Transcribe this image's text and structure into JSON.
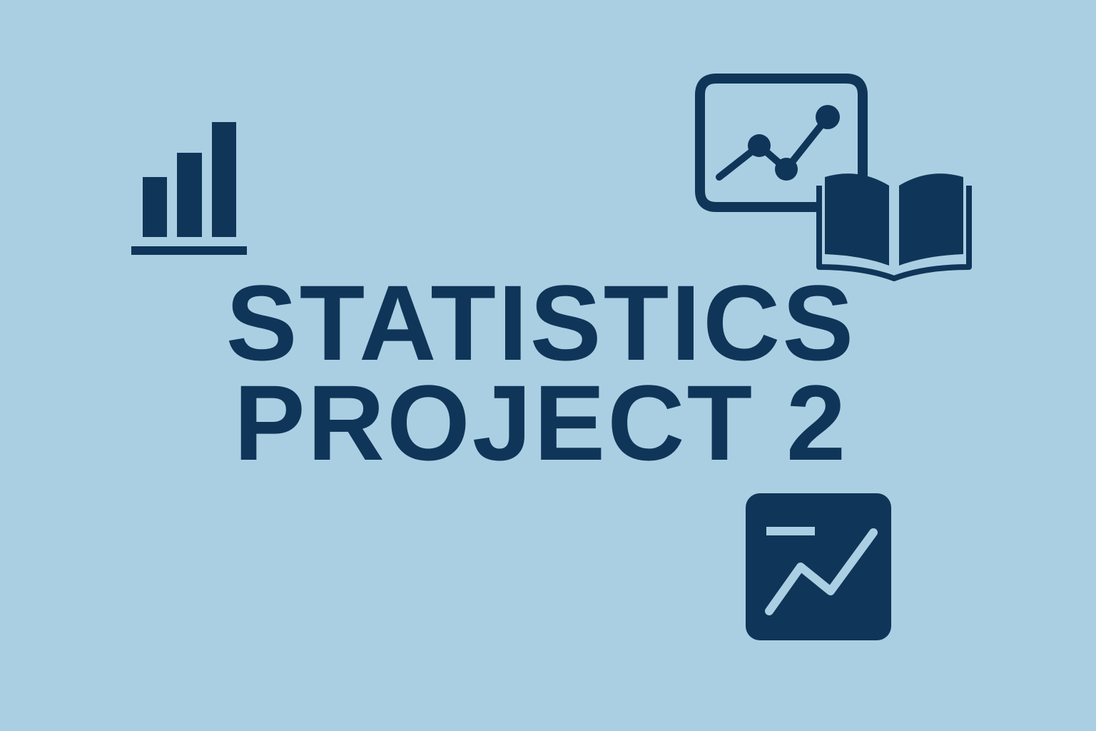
{
  "title": {
    "line1": "STATISTICS",
    "line2": "PROJECT 2"
  },
  "colors": {
    "background": "#abcfe2",
    "foreground": "#0f3659"
  },
  "icons": [
    "bar-chart-icon",
    "line-chart-board-icon",
    "open-book-icon",
    "trend-card-icon"
  ]
}
